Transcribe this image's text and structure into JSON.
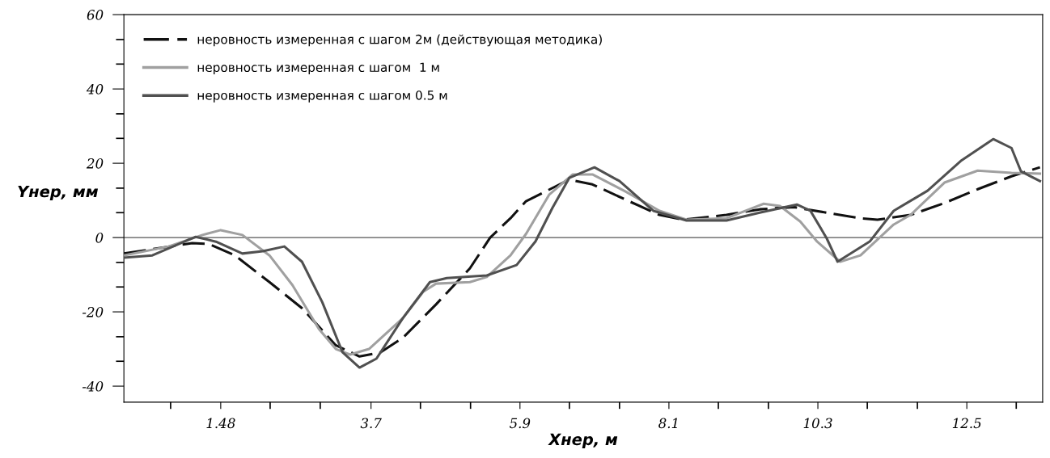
{
  "chart_data": {
    "type": "line",
    "xlabel": "Xнер, м",
    "ylabel": "Yнер, мм",
    "xlim": [
      0.05,
      13.62
    ],
    "ylim": [
      -44.3,
      60
    ],
    "xticks": [
      {
        "value": 0.74,
        "label": null
      },
      {
        "value": 1.48,
        "label": "1.48"
      },
      {
        "value": 2.21,
        "label": null
      },
      {
        "value": 2.95,
        "label": null
      },
      {
        "value": 3.7,
        "label": "3.7"
      },
      {
        "value": 4.43,
        "label": null
      },
      {
        "value": 5.17,
        "label": null
      },
      {
        "value": 5.9,
        "label": "5.9"
      },
      {
        "value": 6.63,
        "label": null
      },
      {
        "value": 7.37,
        "label": null
      },
      {
        "value": 8.1,
        "label": "8.1"
      },
      {
        "value": 8.83,
        "label": null
      },
      {
        "value": 9.57,
        "label": null
      },
      {
        "value": 10.3,
        "label": "10.3"
      },
      {
        "value": 11.03,
        "label": null
      },
      {
        "value": 11.77,
        "label": null
      },
      {
        "value": 12.5,
        "label": "12.5"
      },
      {
        "value": 13.23,
        "label": null
      }
    ],
    "yticks": [
      -40,
      {
        "value": -33.3,
        "label": null
      },
      {
        "value": -26.7,
        "label": null
      },
      -20,
      {
        "value": -13.3,
        "label": null
      },
      {
        "value": -6.7,
        "label": null
      },
      0,
      {
        "value": 6.7,
        "label": null
      },
      {
        "value": 13.3,
        "label": null
      },
      20,
      {
        "value": 26.7,
        "label": null
      },
      {
        "value": 33.3,
        "label": null
      },
      40,
      {
        "value": 46.7,
        "label": null
      },
      {
        "value": 53.3,
        "label": null
      },
      60
    ],
    "grid": false,
    "legend": "top left",
    "ref_lines": [
      {
        "axis": "y",
        "value": 0,
        "color": "#555555",
        "line_style": "solid"
      }
    ],
    "series": [
      {
        "name": "неровность измеренная с шагом 2м (действующая методика)",
        "color": "#111111",
        "line_style": "dashed",
        "x": [
          0.05,
          1.06,
          1.3,
          1.69,
          2.2,
          2.68,
          3.18,
          3.53,
          3.83,
          4.17,
          4.66,
          5.16,
          5.46,
          5.76,
          5.99,
          6.63,
          6.97,
          7.46,
          7.96,
          8.31,
          8.95,
          9.44,
          9.94,
          10.43,
          10.93,
          11.18,
          11.67,
          12.17,
          12.66,
          13.16,
          13.58
        ],
        "values": [
          -4.3,
          -1.5,
          -1.7,
          -4.8,
          -12,
          -19,
          -29,
          -32,
          -31,
          -27,
          -18,
          -8.3,
          0,
          5.2,
          9.8,
          15.6,
          14.3,
          10.2,
          6.1,
          4.8,
          6.1,
          7.6,
          8.2,
          6.7,
          5.2,
          4.8,
          6.1,
          9.3,
          13,
          16.5,
          18.9
        ]
      },
      {
        "name": "неровность измеренная с шагом  1 м",
        "color": "#a0a0a0",
        "line_style": "solid",
        "x": [
          0.05,
          0.71,
          1.21,
          1.48,
          1.8,
          2.2,
          2.54,
          2.93,
          3.18,
          3.39,
          3.67,
          4.17,
          4.47,
          4.66,
          5.16,
          5.41,
          5.76,
          5.99,
          6.33,
          6.68,
          6.97,
          7.46,
          7.96,
          8.36,
          8.95,
          9.5,
          9.74,
          10.04,
          10.29,
          10.63,
          10.93,
          11.42,
          11.67,
          12.17,
          12.66,
          13.16,
          13.58
        ],
        "values": [
          -4.8,
          -2.4,
          0.7,
          2.0,
          0.7,
          -4.8,
          -12.8,
          -24.6,
          -30,
          -31.5,
          -30,
          -21.7,
          -14.6,
          -12.4,
          -12,
          -10.6,
          -4.8,
          1,
          11.5,
          17,
          17,
          12.4,
          7.2,
          4.8,
          5.2,
          9.1,
          8.5,
          4.3,
          -1.1,
          -6.5,
          -4.8,
          3.5,
          6.1,
          14.8,
          18,
          17.4,
          17.2
        ]
      },
      {
        "name": "неровность измеренная с шагом 0.5 м",
        "color": "#505050",
        "line_style": "solid",
        "x": [
          0.05,
          0.47,
          1.11,
          1.41,
          1.8,
          2.1,
          2.42,
          2.68,
          2.98,
          3.28,
          3.53,
          3.78,
          4.17,
          4.57,
          4.82,
          5.41,
          5.85,
          6.13,
          6.38,
          6.63,
          7.0,
          7.37,
          7.87,
          8.36,
          8.95,
          9.44,
          9.99,
          10.19,
          10.43,
          10.59,
          11.07,
          11.42,
          11.92,
          12.41,
          12.89,
          13.16,
          13.3,
          13.58
        ],
        "values": [
          -5.4,
          -4.8,
          0.2,
          -1.1,
          -4.3,
          -3.7,
          -2.4,
          -6.5,
          -17.4,
          -30.9,
          -35,
          -32.6,
          -21.7,
          -12,
          -10.9,
          -10.2,
          -7.4,
          -1,
          8,
          16.1,
          18.9,
          15.2,
          7.2,
          4.6,
          4.6,
          6.7,
          8.9,
          7.2,
          -0.2,
          -6.5,
          -1,
          7.2,
          12.6,
          20.6,
          26.5,
          24.1,
          17.8,
          15.2
        ]
      }
    ]
  }
}
